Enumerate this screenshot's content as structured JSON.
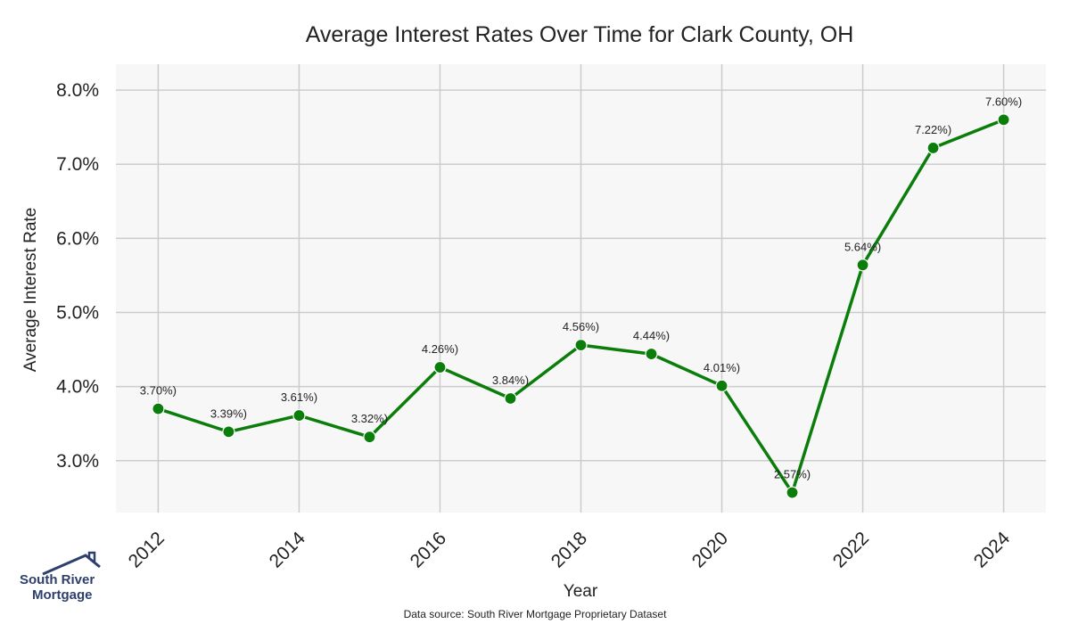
{
  "chart_data": {
    "type": "line",
    "title": "Average Interest Rates Over Time for Clark County, OH",
    "xlabel": "Year",
    "ylabel": "Average Interest Rate",
    "x": [
      2012,
      2013,
      2014,
      2015,
      2016,
      2017,
      2018,
      2019,
      2020,
      2021,
      2022,
      2023,
      2024
    ],
    "values": [
      3.7,
      3.39,
      3.61,
      3.32,
      4.26,
      3.84,
      4.56,
      4.44,
      4.01,
      2.57,
      5.64,
      7.22,
      7.6
    ],
    "data_labels": [
      "3.70%)",
      "3.39%)",
      "3.61%)",
      "3.32%)",
      "4.26%)",
      "3.84%)",
      "4.56%)",
      "4.44%)",
      "4.01%)",
      "2.57%)",
      "5.64%)",
      "7.22%)",
      "7.60%)"
    ],
    "x_ticks": [
      2012,
      2014,
      2016,
      2018,
      2020,
      2022,
      2024
    ],
    "x_tick_labels": [
      "2012",
      "2014",
      "2016",
      "2018",
      "2020",
      "2022",
      "2024"
    ],
    "y_ticks": [
      3.0,
      4.0,
      5.0,
      6.0,
      7.0,
      8.0
    ],
    "y_tick_labels": [
      "3.0%",
      "4.0%",
      "5.0%",
      "6.0%",
      "7.0%",
      "8.0%"
    ],
    "xlim": [
      2011.4,
      2024.6
    ],
    "ylim": [
      2.3,
      8.35
    ],
    "grid": true,
    "line_color": "#0a7d0a",
    "background": "#f7f7f7",
    "grid_color": "#cccccc"
  },
  "footer": {
    "source": "Data source: South River Mortgage Proprietary Dataset"
  },
  "logo": {
    "line1": "South River",
    "line2": "Mortgage",
    "color": "#2e3f6e"
  }
}
